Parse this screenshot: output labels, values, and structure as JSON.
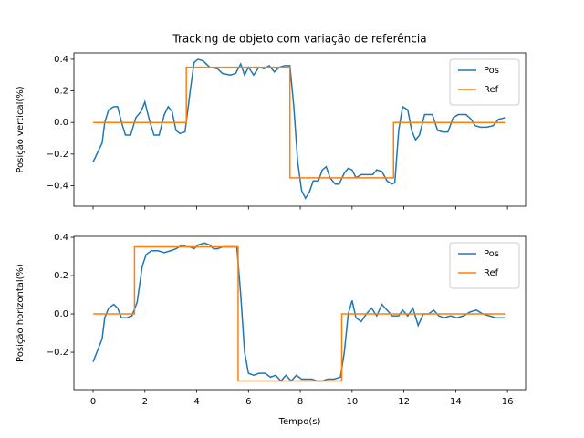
{
  "chart_data": [
    {
      "type": "line",
      "title": "Tracking de objeto com variação de referência",
      "ylabel": "Posição vertical(%)",
      "xlim": [
        -0.74,
        16.7
      ],
      "ylim": [
        -0.53,
        0.44
      ],
      "xticks": [
        0,
        2,
        4,
        6,
        8,
        10,
        12,
        14,
        16
      ],
      "xtick_labels": false,
      "yticks": [
        {
          "value": -0.4,
          "label": "−0.4"
        },
        {
          "value": -0.2,
          "label": "−0.2"
        },
        {
          "value": 0,
          "label": "0.0"
        },
        0.2,
        0.4
      ],
      "legend": "upper right",
      "series": [
        {
          "name": "Pos",
          "color": "#1f77b4",
          "x": [
            0,
            0.35,
            0.45,
            0.6,
            0.8,
            0.95,
            1.1,
            1.25,
            1.45,
            1.65,
            1.85,
            2.0,
            2.15,
            2.35,
            2.55,
            2.75,
            2.9,
            3.05,
            3.2,
            3.35,
            3.55,
            3.75,
            3.9,
            4.05,
            4.25,
            4.5,
            4.8,
            5.0,
            5.3,
            5.5,
            5.7,
            5.85,
            6.0,
            6.2,
            6.4,
            6.6,
            6.8,
            7.0,
            7.2,
            7.4,
            7.6,
            7.75,
            7.9,
            8.05,
            8.2,
            8.35,
            8.5,
            8.7,
            8.85,
            9.0,
            9.15,
            9.35,
            9.5,
            9.7,
            9.85,
            10.0,
            10.15,
            10.35,
            10.6,
            10.8,
            10.95,
            11.15,
            11.35,
            11.55,
            11.65,
            11.8,
            11.95,
            12.15,
            12.3,
            12.45,
            12.6,
            12.8,
            12.95,
            13.1,
            13.3,
            13.5,
            13.7,
            13.9,
            14.1,
            14.4,
            14.6,
            14.75,
            14.95,
            15.2,
            15.45,
            15.65,
            15.9
          ],
          "values": [
            -0.25,
            -0.13,
            0.0,
            0.08,
            0.1,
            0.1,
            0.0,
            -0.08,
            -0.08,
            0.03,
            0.07,
            0.13,
            0.03,
            -0.08,
            -0.08,
            0.05,
            0.1,
            0.07,
            -0.05,
            -0.07,
            -0.06,
            0.2,
            0.38,
            0.4,
            0.39,
            0.35,
            0.34,
            0.31,
            0.3,
            0.31,
            0.37,
            0.3,
            0.35,
            0.3,
            0.35,
            0.34,
            0.36,
            0.32,
            0.35,
            0.36,
            0.36,
            0.1,
            -0.25,
            -0.43,
            -0.48,
            -0.44,
            -0.37,
            -0.37,
            -0.3,
            -0.28,
            -0.35,
            -0.39,
            -0.39,
            -0.32,
            -0.29,
            -0.3,
            -0.35,
            -0.33,
            -0.33,
            -0.33,
            -0.3,
            -0.31,
            -0.37,
            -0.39,
            -0.38,
            -0.05,
            0.1,
            0.08,
            -0.05,
            -0.11,
            -0.08,
            0.05,
            0.05,
            0.05,
            -0.05,
            -0.06,
            -0.06,
            0.03,
            0.05,
            0.05,
            0.02,
            -0.02,
            -0.03,
            -0.03,
            -0.02,
            0.02,
            0.03
          ]
        },
        {
          "name": "Ref",
          "color": "#ff7f0e",
          "x": [
            0,
            3.6,
            3.6,
            7.6,
            7.6,
            11.6,
            11.6,
            15.9
          ],
          "values": [
            0,
            0,
            0.35,
            0.35,
            -0.35,
            -0.35,
            0,
            0
          ]
        }
      ]
    },
    {
      "type": "line",
      "ylabel": "Posição horizontal(%)",
      "xlabel": "Tempo(s)",
      "xlim": [
        -0.74,
        16.7
      ],
      "ylim": [
        -0.395,
        0.405
      ],
      "xticks": [
        0,
        2,
        4,
        6,
        8,
        10,
        12,
        14,
        16
      ],
      "xtick_labels": true,
      "yticks": [
        {
          "value": -0.2,
          "label": "−0.2"
        },
        {
          "value": 0,
          "label": "0.0"
        },
        0.2,
        0.4
      ],
      "legend": "upper right",
      "series": [
        {
          "name": "Pos",
          "color": "#1f77b4",
          "x": [
            0,
            0.35,
            0.45,
            0.6,
            0.8,
            0.95,
            1.1,
            1.3,
            1.5,
            1.7,
            1.9,
            2.05,
            2.25,
            2.5,
            2.75,
            3.0,
            3.2,
            3.45,
            3.6,
            3.75,
            3.9,
            4.05,
            4.3,
            4.5,
            4.65,
            4.8,
            5.0,
            5.3,
            5.55,
            5.7,
            5.85,
            6.0,
            6.2,
            6.4,
            6.65,
            6.85,
            7.05,
            7.25,
            7.45,
            7.65,
            7.85,
            8.05,
            8.25,
            8.45,
            8.65,
            8.85,
            9.05,
            9.3,
            9.55,
            9.7,
            9.85,
            10.0,
            10.15,
            10.35,
            10.55,
            10.75,
            10.95,
            11.15,
            11.35,
            11.55,
            11.8,
            11.95,
            12.15,
            12.35,
            12.55,
            12.75,
            12.95,
            13.15,
            13.35,
            13.55,
            13.8,
            14.05,
            14.3,
            14.55,
            14.8,
            15.05,
            15.3,
            15.55,
            15.9
          ],
          "values": [
            -0.25,
            -0.13,
            -0.02,
            0.03,
            0.05,
            0.03,
            -0.02,
            -0.02,
            -0.01,
            0.06,
            0.25,
            0.31,
            0.33,
            0.33,
            0.32,
            0.33,
            0.34,
            0.36,
            0.35,
            0.35,
            0.34,
            0.36,
            0.37,
            0.36,
            0.34,
            0.34,
            0.35,
            0.35,
            0.35,
            0.1,
            -0.2,
            -0.31,
            -0.32,
            -0.31,
            -0.31,
            -0.33,
            -0.32,
            -0.35,
            -0.32,
            -0.35,
            -0.32,
            -0.34,
            -0.34,
            -0.34,
            -0.35,
            -0.35,
            -0.34,
            -0.34,
            -0.33,
            -0.2,
            0.0,
            0.07,
            -0.02,
            -0.04,
            0.0,
            0.03,
            -0.01,
            0.05,
            0.02,
            -0.01,
            -0.01,
            0.02,
            -0.01,
            0.03,
            -0.06,
            0.0,
            0.0,
            0.02,
            -0.01,
            -0.02,
            -0.01,
            -0.02,
            -0.01,
            0.01,
            0.02,
            0.0,
            -0.01,
            -0.02,
            -0.02
          ]
        },
        {
          "name": "Ref",
          "color": "#ff7f0e",
          "x": [
            0,
            1.6,
            1.6,
            5.6,
            5.6,
            9.6,
            9.6,
            15.9
          ],
          "values": [
            0,
            0,
            0.35,
            0.35,
            -0.35,
            -0.35,
            0,
            0
          ]
        }
      ]
    }
  ]
}
